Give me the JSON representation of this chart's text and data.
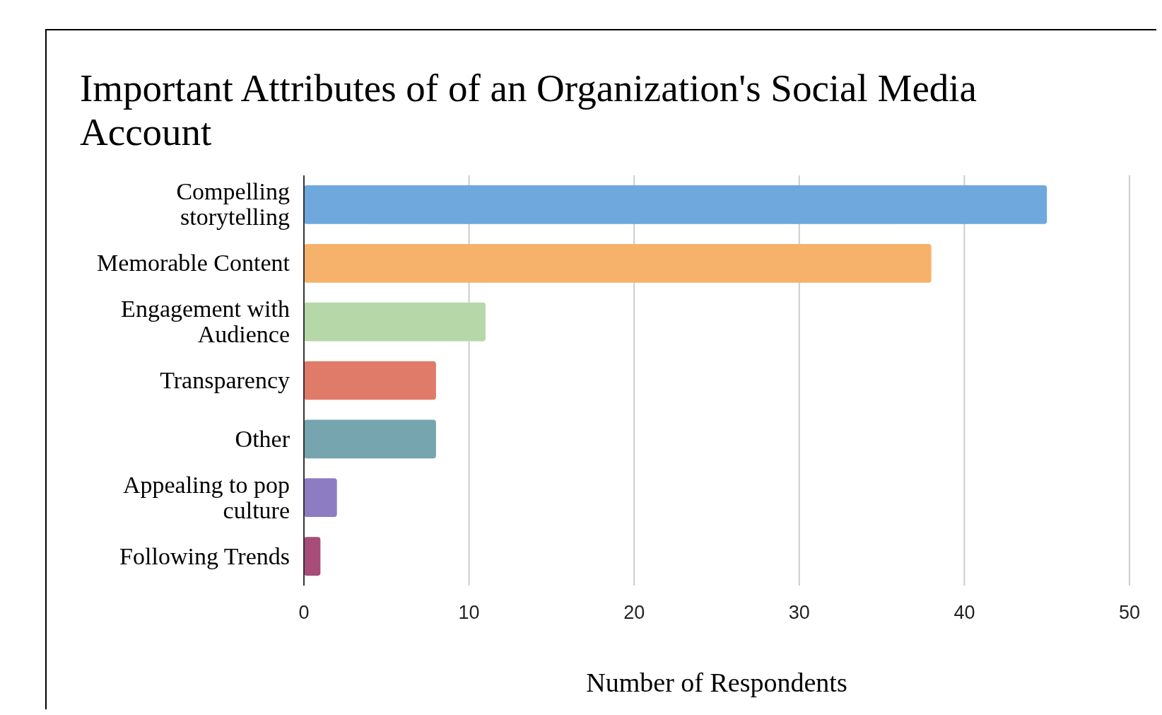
{
  "chart_data": {
    "type": "bar",
    "orientation": "horizontal",
    "title": "Important Attributes of of an Organization's Social Media Account",
    "xlabel": "Number of Respondents",
    "categories": [
      "Compelling storytelling",
      "Memorable Content",
      "Engagement with Audience",
      "Transparency",
      "Other",
      "Appealing to pop culture",
      "Following Trends"
    ],
    "values": [
      45,
      38,
      11,
      8,
      8,
      2,
      1
    ],
    "colors": [
      "#6fa8dc",
      "#f6b26b",
      "#b6d7a8",
      "#e07b6a",
      "#76a5af",
      "#8e7cc3",
      "#a64d79"
    ],
    "xlim": [
      0,
      50
    ],
    "xticks": [
      0,
      10,
      20,
      30,
      40,
      50
    ],
    "grid": "x"
  }
}
